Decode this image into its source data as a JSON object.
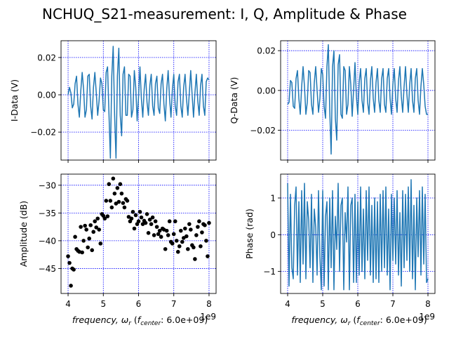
{
  "figure": {
    "title": "NCHUQ_S21-measurement: I, Q, Amplitude & Phase"
  },
  "colors": {
    "line": "#1f77b4",
    "scatter": "#000000",
    "grid": "#0000ff",
    "axes": "#000000"
  },
  "chart_data": [
    {
      "id": "i",
      "type": "line",
      "ylabel": "I-Data (V)",
      "xlabel": "",
      "xlim": [
        3.8,
        8.2
      ],
      "ylim": [
        -0.035,
        0.029
      ],
      "xticks": [
        4,
        5,
        6,
        7,
        8
      ],
      "xtick_labels": [
        "",
        "",
        "",
        "",
        ""
      ],
      "yticks": [
        -0.02,
        0.0,
        0.02
      ],
      "ytick_labels": [
        "−0.02",
        "0.00",
        "0.02"
      ],
      "grid": true,
      "series": [
        {
          "x": [
            4.0,
            4.04,
            4.08,
            4.12,
            4.16,
            4.2,
            4.24,
            4.28,
            4.32,
            4.36,
            4.4,
            4.44,
            4.48,
            4.52,
            4.56,
            4.6,
            4.64,
            4.68,
            4.72,
            4.76,
            4.8,
            4.84,
            4.88,
            4.92,
            4.96,
            5.0,
            5.04,
            5.08,
            5.12,
            5.16,
            5.2,
            5.24,
            5.28,
            5.32,
            5.36,
            5.4,
            5.44,
            5.48,
            5.52,
            5.56,
            5.6,
            5.64,
            5.68,
            5.72,
            5.76,
            5.8,
            5.84,
            5.88,
            5.92,
            5.96,
            6.0,
            6.04,
            6.08,
            6.12,
            6.16,
            6.2,
            6.24,
            6.28,
            6.32,
            6.36,
            6.4,
            6.44,
            6.48,
            6.52,
            6.56,
            6.6,
            6.64,
            6.68,
            6.72,
            6.76,
            6.8,
            6.84,
            6.88,
            6.92,
            6.96,
            7.0,
            7.04,
            7.08,
            7.12,
            7.16,
            7.2,
            7.24,
            7.28,
            7.32,
            7.36,
            7.4,
            7.44,
            7.48,
            7.52,
            7.56,
            7.6,
            7.64,
            7.68,
            7.72,
            7.76,
            7.8,
            7.84,
            7.88,
            7.92,
            7.96,
            8.0
          ],
          "y": [
            0.0,
            0.004,
            0.001,
            -0.007,
            -0.005,
            0.006,
            0.01,
            -0.005,
            -0.012,
            0.002,
            0.012,
            0.003,
            -0.012,
            -0.008,
            0.01,
            0.011,
            -0.006,
            -0.013,
            0.004,
            0.012,
            0.001,
            -0.011,
            -0.003,
            0.009,
            0.006,
            -0.008,
            -0.009,
            0.012,
            0.015,
            -0.01,
            -0.034,
            0.01,
            0.026,
            -0.011,
            -0.034,
            0.01,
            0.025,
            -0.011,
            -0.022,
            0.011,
            0.015,
            -0.011,
            -0.011,
            0.011,
            0.01,
            -0.012,
            -0.008,
            0.013,
            0.004,
            -0.014,
            -0.001,
            0.015,
            -0.002,
            -0.012,
            0.003,
            0.011,
            -0.004,
            -0.011,
            0.005,
            0.011,
            -0.006,
            -0.011,
            0.006,
            0.01,
            -0.007,
            -0.01,
            0.006,
            0.011,
            -0.005,
            -0.014,
            0.003,
            0.013,
            -0.002,
            -0.012,
            0.003,
            0.011,
            -0.006,
            -0.011,
            0.007,
            0.011,
            -0.006,
            -0.012,
            0.004,
            0.011,
            -0.002,
            -0.011,
            0.001,
            0.013,
            0.0,
            -0.012,
            0.001,
            0.011,
            -0.003,
            -0.011,
            0.005,
            0.011,
            -0.006,
            -0.011,
            0.007,
            0.009,
            0.008
          ]
        }
      ]
    },
    {
      "id": "q",
      "type": "line",
      "ylabel": "Q-Data (V)",
      "xlabel": "",
      "xlim": [
        3.8,
        8.2
      ],
      "ylim": [
        -0.035,
        0.025
      ],
      "xticks": [
        4,
        5,
        6,
        7,
        8
      ],
      "xtick_labels": [
        "",
        "",
        "",
        "",
        ""
      ],
      "yticks": [
        -0.02,
        0.0,
        0.02
      ],
      "ytick_labels": [
        "−0.02",
        "0.00",
        "0.02"
      ],
      "grid": true,
      "series": [
        {
          "x": [
            4.0,
            4.04,
            4.08,
            4.12,
            4.16,
            4.2,
            4.24,
            4.28,
            4.32,
            4.36,
            4.4,
            4.44,
            4.48,
            4.52,
            4.56,
            4.6,
            4.64,
            4.68,
            4.72,
            4.76,
            4.8,
            4.84,
            4.88,
            4.92,
            4.96,
            5.0,
            5.04,
            5.08,
            5.12,
            5.16,
            5.2,
            5.24,
            5.28,
            5.32,
            5.36,
            5.4,
            5.44,
            5.48,
            5.52,
            5.56,
            5.6,
            5.64,
            5.68,
            5.72,
            5.76,
            5.8,
            5.84,
            5.88,
            5.92,
            5.96,
            6.0,
            6.04,
            6.08,
            6.12,
            6.16,
            6.2,
            6.24,
            6.28,
            6.32,
            6.36,
            6.4,
            6.44,
            6.48,
            6.52,
            6.56,
            6.6,
            6.64,
            6.68,
            6.72,
            6.76,
            6.8,
            6.84,
            6.88,
            6.92,
            6.96,
            7.0,
            7.04,
            7.08,
            7.12,
            7.16,
            7.2,
            7.24,
            7.28,
            7.32,
            7.36,
            7.4,
            7.44,
            7.48,
            7.52,
            7.56,
            7.6,
            7.64,
            7.68,
            7.72,
            7.76,
            7.8,
            7.84,
            7.88,
            7.92,
            7.96,
            8.0
          ],
          "y": [
            -0.007,
            -0.006,
            0.005,
            0.004,
            -0.008,
            -0.009,
            0.006,
            0.01,
            -0.004,
            -0.012,
            0.002,
            0.012,
            0.002,
            -0.012,
            -0.006,
            0.01,
            0.009,
            -0.007,
            -0.012,
            0.004,
            0.012,
            0.0,
            -0.011,
            -0.004,
            0.011,
            0.008,
            -0.008,
            -0.014,
            0.012,
            0.023,
            -0.01,
            -0.032,
            0.012,
            0.02,
            -0.014,
            -0.025,
            0.013,
            0.018,
            -0.012,
            -0.014,
            0.012,
            0.01,
            -0.012,
            -0.007,
            0.012,
            0.003,
            -0.013,
            0.0,
            0.014,
            -0.003,
            -0.012,
            0.004,
            0.011,
            -0.005,
            -0.011,
            0.006,
            0.011,
            -0.006,
            -0.012,
            0.005,
            0.012,
            -0.004,
            -0.011,
            0.004,
            0.011,
            -0.005,
            -0.011,
            0.006,
            0.011,
            -0.007,
            -0.011,
            0.006,
            0.011,
            -0.004,
            -0.012,
            0.003,
            0.011,
            -0.004,
            -0.011,
            0.005,
            0.012,
            -0.003,
            -0.011,
            0.002,
            0.012,
            -0.002,
            -0.011,
            0.003,
            0.011,
            -0.005,
            -0.011,
            0.006,
            0.011,
            -0.005,
            -0.012,
            0.002,
            0.011,
            0.003,
            -0.008,
            -0.012,
            -0.012
          ]
        }
      ]
    },
    {
      "id": "amp",
      "type": "scatter",
      "ylabel": "Amplitude (dB)",
      "xlabel": "frequency, ω_r (f_center: 6.0e+09)",
      "offset_text": "1e9",
      "xlim": [
        3.8,
        8.2
      ],
      "ylim": [
        -49.5,
        -28
      ],
      "xticks": [
        4,
        5,
        6,
        7,
        8
      ],
      "xtick_labels": [
        "4",
        "5",
        "6",
        "7",
        "8"
      ],
      "yticks": [
        -45,
        -40,
        -35,
        -30
      ],
      "ytick_labels": [
        "−45",
        "−40",
        "−35",
        "−30"
      ],
      "grid": true,
      "series": [
        {
          "x": [
            4.0,
            4.04,
            4.08,
            4.12,
            4.16,
            4.2,
            4.24,
            4.28,
            4.32,
            4.36,
            4.4,
            4.44,
            4.48,
            4.52,
            4.56,
            4.6,
            4.64,
            4.68,
            4.72,
            4.76,
            4.8,
            4.84,
            4.88,
            4.92,
            4.96,
            5.0,
            5.04,
            5.08,
            5.12,
            5.16,
            5.2,
            5.24,
            5.28,
            5.32,
            5.36,
            5.4,
            5.44,
            5.48,
            5.52,
            5.56,
            5.6,
            5.64,
            5.68,
            5.72,
            5.76,
            5.8,
            5.84,
            5.88,
            5.92,
            5.96,
            6.0,
            6.04,
            6.08,
            6.12,
            6.16,
            6.2,
            6.24,
            6.28,
            6.32,
            6.36,
            6.4,
            6.44,
            6.48,
            6.52,
            6.56,
            6.6,
            6.64,
            6.68,
            6.72,
            6.76,
            6.8,
            6.84,
            6.88,
            6.92,
            6.96,
            7.0,
            7.04,
            7.08,
            7.12,
            7.16,
            7.2,
            7.24,
            7.28,
            7.32,
            7.36,
            7.4,
            7.44,
            7.48,
            7.52,
            7.56,
            7.6,
            7.64,
            7.68,
            7.72,
            7.76,
            7.8,
            7.84,
            7.88,
            7.92,
            7.96,
            8.0
          ],
          "y": [
            -42.8,
            -44.0,
            -48.1,
            -45.0,
            -45.2,
            -39.3,
            -41.5,
            -41.8,
            -42.0,
            -37.5,
            -42.1,
            -40.0,
            -37.3,
            -38.0,
            -41.2,
            -39.6,
            -37.2,
            -41.7,
            -38.4,
            -36.5,
            -37.6,
            -36.0,
            -38.0,
            -40.5,
            -35.2,
            -35.5,
            -36.0,
            -32.8,
            -35.6,
            -29.8,
            -32.8,
            -34.0,
            -28.8,
            -31.5,
            -33.3,
            -30.5,
            -33.0,
            -29.8,
            -31.5,
            -33.2,
            -34.0,
            -32.5,
            -32.8,
            -35.7,
            -36.5,
            -36.0,
            -34.8,
            -37.8,
            -35.4,
            -37.0,
            -36.5,
            -34.8,
            -35.8,
            -37.0,
            -36.4,
            -36.8,
            -35.2,
            -38.6,
            -36.2,
            -37.0,
            -35.8,
            -39.0,
            -36.5,
            -37.5,
            -38.8,
            -38.2,
            -39.3,
            -37.8,
            -38.0,
            -41.5,
            -38.2,
            -39.0,
            -36.5,
            -40.2,
            -40.5,
            -38.8,
            -36.5,
            -40.0,
            -42.0,
            -41.0,
            -38.2,
            -40.2,
            -39.5,
            -37.8,
            -39.2,
            -41.5,
            -37.0,
            -38.0,
            -40.8,
            -41.2,
            -43.3,
            -39.0,
            -37.5,
            -36.5,
            -41.0,
            -38.5,
            -37.0,
            -37.2,
            -40.0,
            -42.8,
            -36.8
          ]
        }
      ]
    },
    {
      "id": "phase",
      "type": "line",
      "ylabel": "Phase (rad)",
      "xlabel": "frequency, ω_r (f_center: 6.0e+09)",
      "offset_text": "1e9",
      "xlim": [
        3.8,
        8.2
      ],
      "ylim": [
        -1.6,
        1.65
      ],
      "xticks": [
        4,
        5,
        6,
        7,
        8
      ],
      "xtick_labels": [
        "4",
        "5",
        "6",
        "7",
        "8"
      ],
      "yticks": [
        -1,
        0,
        1
      ],
      "ytick_labels": [
        "−1",
        "0",
        "1"
      ],
      "grid": true,
      "series": [
        {
          "x": [
            4.0,
            4.04,
            4.08,
            4.12,
            4.16,
            4.2,
            4.24,
            4.28,
            4.32,
            4.36,
            4.4,
            4.44,
            4.48,
            4.52,
            4.56,
            4.6,
            4.64,
            4.68,
            4.72,
            4.76,
            4.8,
            4.84,
            4.88,
            4.92,
            4.96,
            5.0,
            5.04,
            5.08,
            5.12,
            5.16,
            5.2,
            5.24,
            5.28,
            5.32,
            5.36,
            5.4,
            5.44,
            5.48,
            5.52,
            5.56,
            5.6,
            5.64,
            5.68,
            5.72,
            5.76,
            5.8,
            5.84,
            5.88,
            5.92,
            5.96,
            6.0,
            6.04,
            6.08,
            6.12,
            6.16,
            6.2,
            6.24,
            6.28,
            6.32,
            6.36,
            6.4,
            6.44,
            6.48,
            6.52,
            6.56,
            6.6,
            6.64,
            6.68,
            6.72,
            6.76,
            6.8,
            6.84,
            6.88,
            6.92,
            6.96,
            7.0,
            7.04,
            7.08,
            7.12,
            7.16,
            7.2,
            7.24,
            7.28,
            7.32,
            7.36,
            7.4,
            7.44,
            7.48,
            7.52,
            7.56,
            7.6,
            7.64,
            7.68,
            7.72,
            7.76,
            7.8,
            7.84,
            7.88,
            7.92,
            7.96,
            8.0
          ],
          "y": [
            1.4,
            -1.4,
            1.1,
            -0.9,
            -1.2,
            0.8,
            1.3,
            -1.1,
            0.9,
            -1.3,
            1.2,
            -0.8,
            1.4,
            -1.2,
            0.9,
            0.4,
            -0.9,
            1.1,
            -1.3,
            0.7,
            0.2,
            -1.1,
            1.2,
            -0.6,
            -1.5,
            1.2,
            -1.4,
            0.5,
            0.9,
            -1.5,
            1.0,
            -0.9,
            1.2,
            -1.5,
            0.5,
            -0.4,
            1.4,
            -1.0,
            0.8,
            1.0,
            -1.5,
            0.6,
            -0.2,
            1.3,
            -1.5,
            0.8,
            1.0,
            -1.3,
            1.1,
            -1.3,
            0.9,
            -1.1,
            1.3,
            -1.0,
            0.7,
            -1.2,
            1.2,
            -0.7,
            1.3,
            -1.1,
            0.8,
            -1.3,
            1.0,
            -1.2,
            0.9,
            -1.3,
            1.1,
            -1.0,
            1.2,
            -0.9,
            1.3,
            -1.1,
            0.7,
            -1.5,
            1.1,
            -0.7,
            1.0,
            -0.8,
            1.2,
            -1.1,
            0.6,
            -1.4,
            1.2,
            -0.9,
            1.1,
            -0.7,
            1.3,
            -1.0,
            1.5,
            -1.2,
            0.8,
            -1.5,
            1.0,
            -0.6,
            1.2,
            -1.1,
            1.3,
            -0.8,
            1.1,
            -1.3,
            -1.2
          ]
        }
      ]
    }
  ]
}
